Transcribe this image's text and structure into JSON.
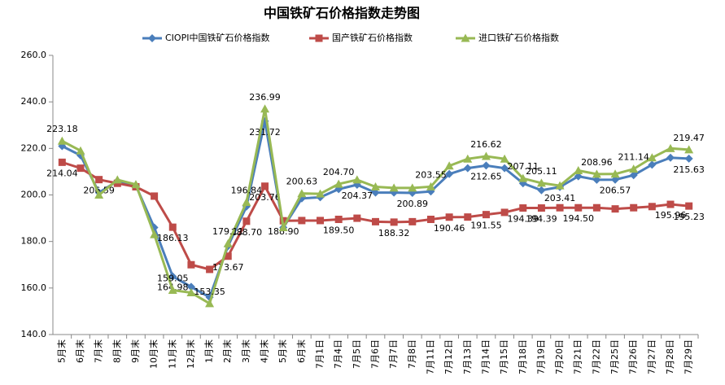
{
  "chart_data": {
    "type": "line",
    "title": "中国铁矿石价格指数走势图",
    "categories": [
      "5月末",
      "6月末",
      "7月末",
      "8月末",
      "9月末",
      "10月末",
      "11月末",
      "12月末",
      "1月末",
      "2月末",
      "3月末",
      "4月末",
      "5月末",
      "6月末",
      "7月1日",
      "7月4日",
      "7月5日",
      "7月6日",
      "7月7日",
      "7月8日",
      "7月11日",
      "7月12日",
      "7月13日",
      "7月14日",
      "7月15日",
      "7月18日",
      "7月19日",
      "7月20日",
      "7月21日",
      "7月22日",
      "7月25日",
      "7月26日",
      "7月27日",
      "7月28日",
      "7月29日"
    ],
    "series": [
      {
        "name": "CIOPI中国铁矿石价格指数",
        "color": "#4a7ebb",
        "marker": "diamond",
        "values": [
          221,
          217,
          201,
          206,
          204,
          186,
          164.98,
          160.5,
          156,
          178,
          195,
          231.72,
          186,
          198.5,
          199,
          202.5,
          204.37,
          201,
          201,
          200.89,
          201.5,
          209,
          211.5,
          212.65,
          211.5,
          205,
          202,
          203.41,
          208,
          206.5,
          206.57,
          208.5,
          213,
          216,
          215.63
        ],
        "value_labels": [
          null,
          null,
          null,
          null,
          null,
          null,
          "164.98",
          null,
          null,
          null,
          null,
          "231.72",
          null,
          null,
          null,
          null,
          "204.37",
          null,
          null,
          "200.89",
          null,
          null,
          null,
          "212.65",
          null,
          null,
          null,
          "203.41",
          null,
          null,
          "206.57",
          null,
          null,
          null,
          "215.63"
        ]
      },
      {
        "name": "国产铁矿石价格指数",
        "color": "#be4b48",
        "marker": "square",
        "values": [
          214.04,
          211.5,
          206.59,
          205,
          203.5,
          199.5,
          186.13,
          170,
          168,
          173.67,
          188.7,
          203.76,
          188.9,
          189,
          189,
          189.5,
          190,
          188.5,
          188.32,
          188.5,
          189.5,
          190.46,
          190.5,
          191.55,
          192.5,
          194.39,
          194.39,
          194.5,
          194.5,
          194.5,
          194,
          194.5,
          195,
          195.96,
          195.23
        ],
        "value_labels": [
          "214.04",
          null,
          "206.59",
          null,
          null,
          null,
          "186.13",
          null,
          null,
          "173.67",
          "188.70",
          "203.76",
          "188.90",
          null,
          null,
          "189.50",
          null,
          null,
          "188.32",
          null,
          null,
          "190.46",
          null,
          "191.55",
          null,
          "194.39",
          "194.39",
          null,
          "194.50",
          null,
          null,
          null,
          null,
          "195.96",
          "195.23"
        ]
      },
      {
        "name": "进口铁矿石价格指数",
        "color": "#98b954",
        "marker": "triangle",
        "values": [
          223.18,
          219,
          200,
          206.5,
          204.5,
          183,
          159.05,
          158,
          153.35,
          179.11,
          196.84,
          236.99,
          186,
          200.63,
          200.5,
          204.7,
          206.5,
          203.5,
          203,
          203,
          203.55,
          212.5,
          215.5,
          216.62,
          215.5,
          207.11,
          205.11,
          204,
          210.5,
          208.96,
          209,
          211.14,
          216,
          220,
          219.47
        ],
        "value_labels": [
          "223.18",
          null,
          null,
          null,
          null,
          null,
          "159.05",
          null,
          "153.35",
          "179.11",
          "196.84",
          "236.99",
          null,
          "200.63",
          null,
          "204.70",
          null,
          null,
          null,
          null,
          "203.55",
          null,
          null,
          "216.62",
          null,
          "207.11",
          "205.11",
          null,
          null,
          "208.96",
          null,
          "211.14",
          null,
          null,
          "219.47"
        ]
      }
    ],
    "ylim": [
      140,
      260
    ],
    "yticks": [
      {
        "value": 140,
        "label": "140.0"
      },
      {
        "value": 160,
        "label": "160.0"
      },
      {
        "value": 180,
        "label": "180.0"
      },
      {
        "value": 200,
        "label": "200.0"
      },
      {
        "value": 220,
        "label": "220.0"
      },
      {
        "value": 240,
        "label": "240.0"
      },
      {
        "value": 260,
        "label": "260.0"
      }
    ],
    "grid": false
  }
}
